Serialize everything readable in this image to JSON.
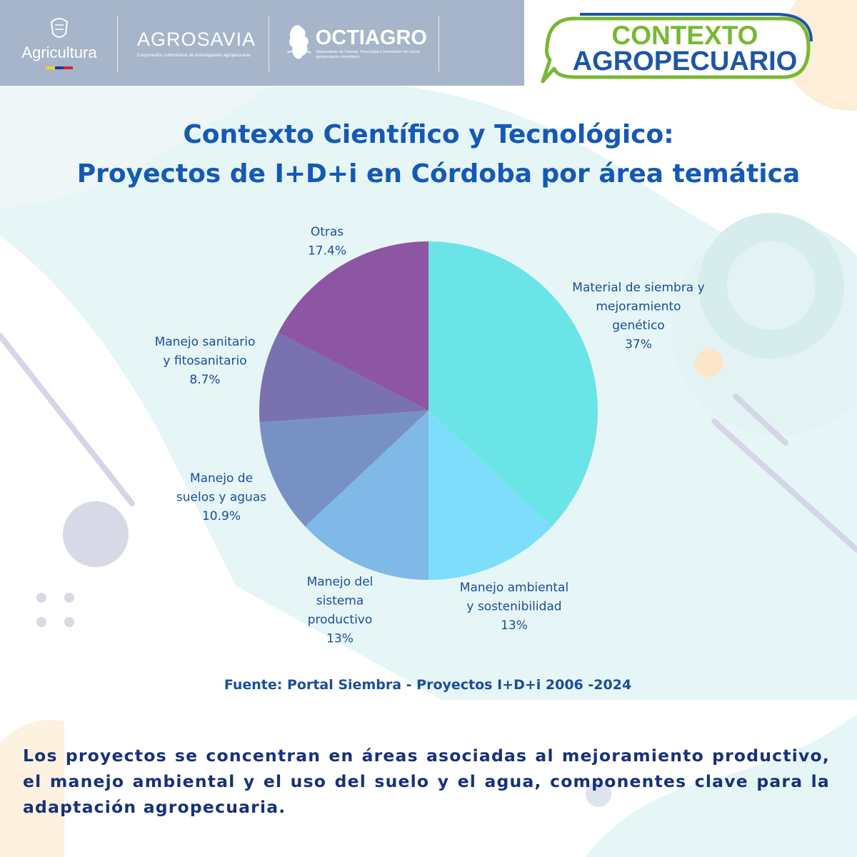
{
  "header": {
    "logos": {
      "agricultura": "Agricultura",
      "agrosavia": "AGROSAVIA",
      "agrosavia_sub": "Corporación colombiana de investigación agropecuaria",
      "octiagro": "OCTIAGRO",
      "octiagro_sub": "Observatorio de Ciencia, Tecnología e Innovación del sector agropecuario colombiano"
    },
    "badge": {
      "line1": "CONTEXTO",
      "line2": "AGROPECUARIO"
    }
  },
  "title": {
    "line1": "Contexto Científico y Tecnológico:",
    "line2": "Proyectos de I+D+i en Córdoba por área temática"
  },
  "chart_data": {
    "type": "pie",
    "slices": [
      {
        "label_lines": [
          "Material de siembra y",
          "mejoramiento",
          "genético"
        ],
        "value": 37,
        "value_label": "37%",
        "color": "#6be4e8"
      },
      {
        "label_lines": [
          "Manejo ambiental",
          "y sostenibilidad"
        ],
        "value": 13,
        "value_label": "13%",
        "color": "#7dddfb"
      },
      {
        "label_lines": [
          "Manejo del",
          "sistema",
          "productivo"
        ],
        "value": 13,
        "value_label": "13%",
        "color": "#80b8e8"
      },
      {
        "label_lines": [
          "Manejo de",
          "suelos y aguas"
        ],
        "value": 10.9,
        "value_label": "10.9%",
        "color": "#7891c4"
      },
      {
        "label_lines": [
          "Manejo sanitario",
          "y fitosanitario"
        ],
        "value": 8.7,
        "value_label": "8.7%",
        "color": "#7a72b0"
      },
      {
        "label_lines": [
          "Otras"
        ],
        "value": 17.4,
        "value_label": "17.4%",
        "color": "#8c56a3"
      }
    ],
    "start_angle": "12 o'clock",
    "direction": "clockwise",
    "label_color": "#1a4d9c"
  },
  "source": "Fuente: Portal Siembra - Proyectos I+D+i 2006 -2024",
  "summary": "Los proyectos se concentran en áreas asociadas al mejoramiento productivo, el manejo ambiental y el uso del suelo y el agua, componentes clave para la adaptación agropecuaria.",
  "colors": {
    "header_band": "#a6b5c9",
    "title": "#1459b5",
    "badge_green": "#78b833",
    "badge_blue": "#1e55a6",
    "summary_text": "#16317a"
  }
}
